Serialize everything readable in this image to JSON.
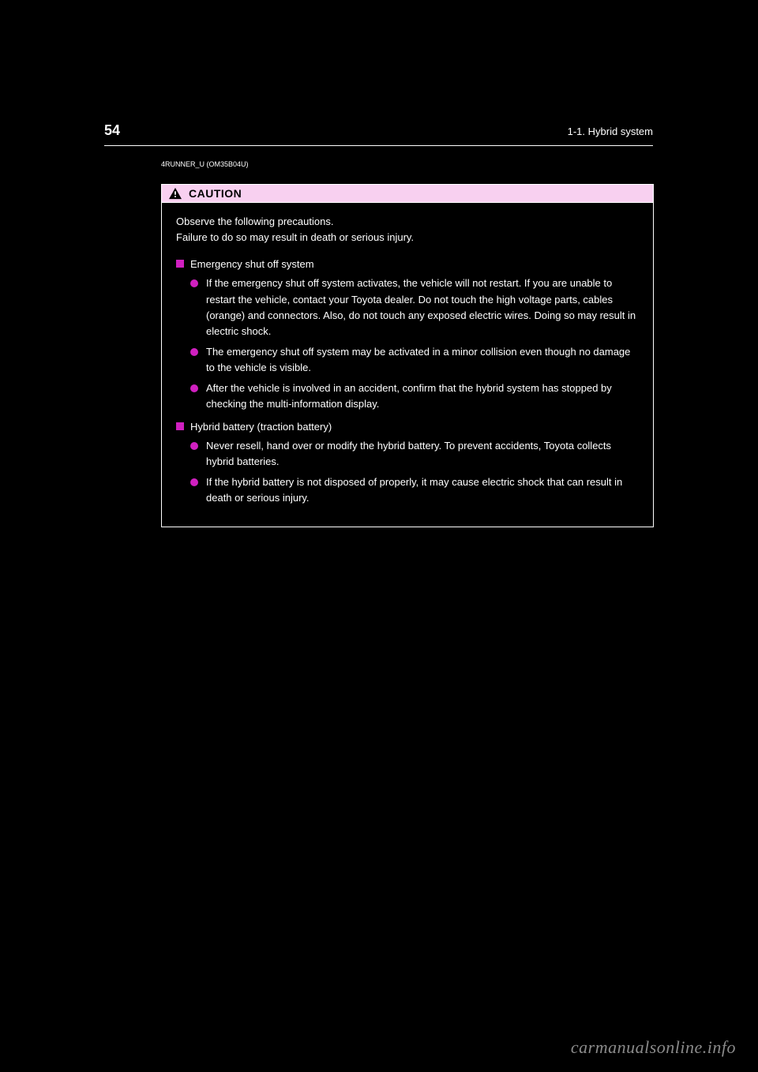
{
  "header": {
    "page_number": "54",
    "section": "1-1. Hybrid system"
  },
  "copyright": "4RUNNER_U (OM35B04U)",
  "caution": {
    "label": "CAUTION",
    "intro": "Observe the following precautions.\nFailure to do so may result in death or serious injury.",
    "topics": [
      {
        "title": "Emergency shut off system",
        "bullets": [
          "If the emergency shut off system activates, the vehicle will not restart. If you are unable to restart the vehicle, contact your Toyota dealer. Do not touch the high voltage parts, cables (orange) and connectors. Also, do not touch any exposed electric wires. Doing so may result in electric shock.",
          "The emergency shut off system may be activated in a minor collision even though no damage to the vehicle is visible.",
          "After the vehicle is involved in an accident, confirm that the hybrid system has stopped by checking the multi-information display."
        ]
      },
      {
        "title": "Hybrid battery (traction battery)",
        "bullets": [
          "Never resell, hand over or modify the hybrid battery. To prevent accidents, Toyota collects hybrid batteries.",
          "If the hybrid battery is not disposed of properly, it may cause electric shock that can result in death or serious injury."
        ]
      }
    ]
  },
  "watermark": "carmanualsonline.info",
  "colors": {
    "background": "#000000",
    "text": "#ffffff",
    "caution_header_bg": "#f8d0f0",
    "bullet_color": "#d020c0",
    "watermark_color": "#8a8a8a"
  }
}
